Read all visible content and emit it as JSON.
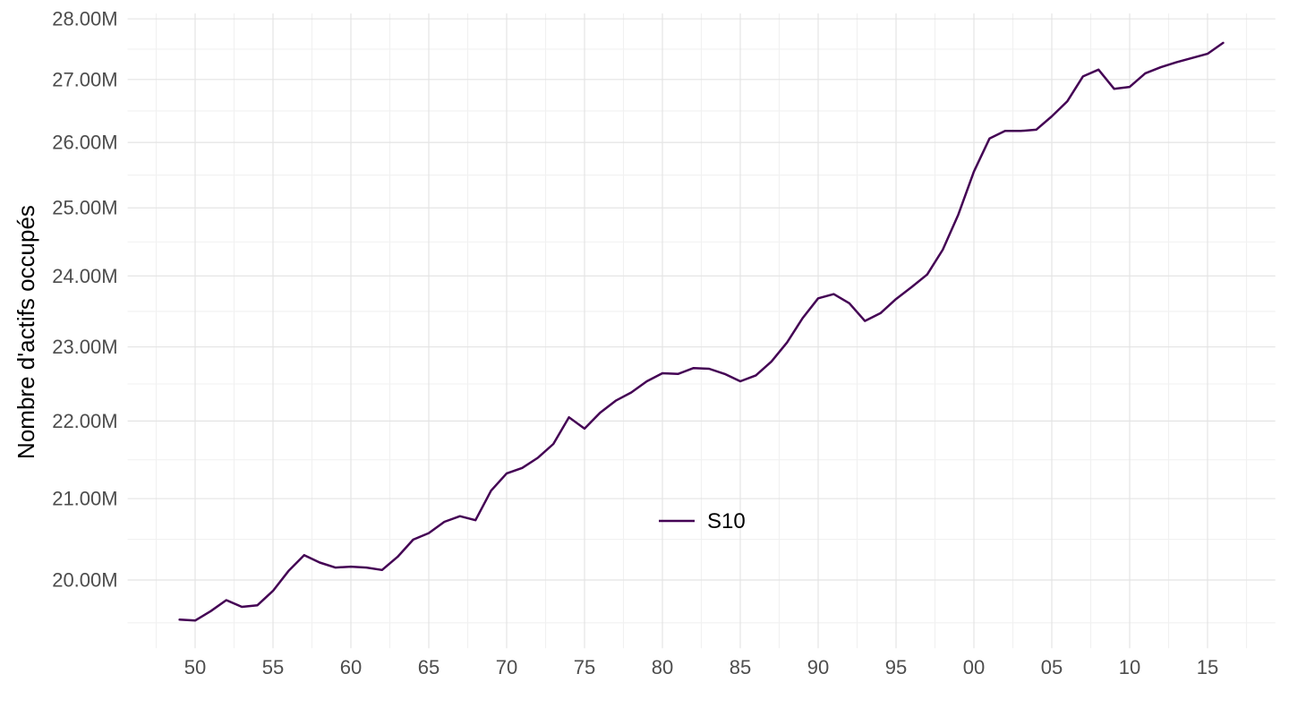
{
  "figure": {
    "background": "#ffffff"
  },
  "chart_data": {
    "type": "line",
    "title": "",
    "xlabel": "",
    "ylabel": "Nombre d'actifs occupés",
    "y_scale": "log10",
    "y_unit": "M",
    "grid": {
      "major_color": "#e4e4e4",
      "minor_color": "#f1f1f1",
      "minor": true
    },
    "tick_text_color": "#4d4d4d",
    "title_text_color": "#000000",
    "x_range": [
      1945.65,
      2019.35
    ],
    "y_range_millions": [
      19.2,
      28.26
    ],
    "x_tick_years": [
      1950,
      1955,
      1960,
      1965,
      1970,
      1975,
      1980,
      1985,
      1990,
      1995,
      2000,
      2005,
      2010,
      2015
    ],
    "x_tick_labels": [
      "50",
      "55",
      "60",
      "65",
      "70",
      "75",
      "80",
      "85",
      "90",
      "95",
      "00",
      "05",
      "10",
      "15"
    ],
    "y_tick_values": [
      20,
      21,
      22,
      23,
      24,
      25,
      26,
      27,
      28
    ],
    "y_tick_labels": [
      "20.00M",
      "21.00M",
      "22.00M",
      "23.00M",
      "24.00M",
      "25.00M",
      "26.00M",
      "27.00M",
      "28.00M"
    ],
    "x": [
      1949,
      1950,
      1951,
      1952,
      1953,
      1954,
      1955,
      1956,
      1957,
      1958,
      1959,
      1960,
      1961,
      1962,
      1963,
      1964,
      1965,
      1966,
      1967,
      1968,
      1969,
      1970,
      1971,
      1972,
      1973,
      1974,
      1975,
      1976,
      1977,
      1978,
      1979,
      1980,
      1981,
      1982,
      1983,
      1984,
      1985,
      1986,
      1987,
      1988,
      1989,
      1990,
      1991,
      1992,
      1993,
      1994,
      1995,
      1996,
      1997,
      1998,
      1999,
      2000,
      2001,
      2002,
      2003,
      2004,
      2005,
      2006,
      2007,
      2008,
      2009,
      2010,
      2011,
      2012,
      2013,
      2014,
      2015,
      2016
    ],
    "series": [
      {
        "name": "S10",
        "color": "#440154",
        "values_millions": [
          19.53,
          19.52,
          19.63,
          19.76,
          19.68,
          19.7,
          19.87,
          20.11,
          20.3,
          20.21,
          20.15,
          20.16,
          20.15,
          20.12,
          20.28,
          20.49,
          20.57,
          20.71,
          20.78,
          20.73,
          21.1,
          21.32,
          21.39,
          21.52,
          21.7,
          22.05,
          21.9,
          22.11,
          22.27,
          22.38,
          22.53,
          22.64,
          22.63,
          22.71,
          22.7,
          22.63,
          22.53,
          22.61,
          22.8,
          23.06,
          23.4,
          23.68,
          23.74,
          23.61,
          23.36,
          23.47,
          23.67,
          23.84,
          24.02,
          24.38,
          24.9,
          25.55,
          26.06,
          26.18,
          26.18,
          26.2,
          26.41,
          26.65,
          27.05,
          27.16,
          26.85,
          26.88,
          27.1,
          27.2,
          27.28,
          27.35,
          27.42,
          27.6
        ]
      }
    ],
    "legend": {
      "label": "S10",
      "position": "inside-plot-center-right"
    }
  }
}
